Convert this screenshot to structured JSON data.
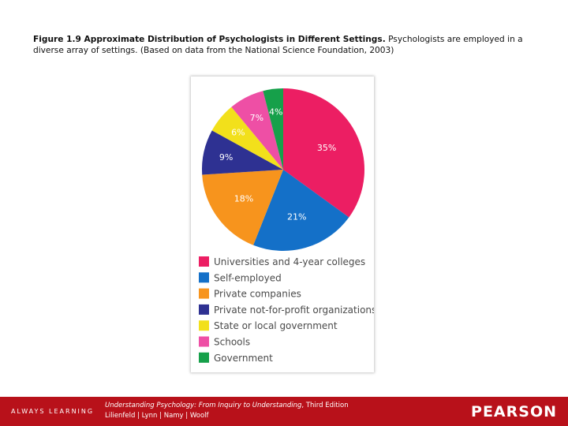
{
  "caption": {
    "figure_label": "Figure 1.9 Approximate Distribution of Psychologists in Different Settings.",
    "description": "Psychologists are employed in a diverse array of settings. (Based on data from the National Science Foundation, 2003)"
  },
  "chart_data": {
    "type": "pie",
    "title": "",
    "slices": [
      {
        "label": "Universities and 4-year colleges",
        "value": 35,
        "display": "35%",
        "color": "#ec1e63"
      },
      {
        "label": "Self-employed",
        "value": 21,
        "display": "21%",
        "color": "#1470c8"
      },
      {
        "label": "Private companies",
        "value": 18,
        "display": "18%",
        "color": "#f7941d"
      },
      {
        "label": "Private not-for-profit organizations",
        "value": 9,
        "display": "9%",
        "color": "#2e3192"
      },
      {
        "label": "State or local government",
        "value": 6,
        "display": "6%",
        "color": "#f2e01b"
      },
      {
        "label": "Schools",
        "value": 7,
        "display": "7%",
        "color": "#ee4fa5"
      },
      {
        "label": "Government",
        "value": 4,
        "display": "4%",
        "color": "#16a04a"
      }
    ],
    "legend_position": "bottom"
  },
  "footer": {
    "tagline": "ALWAYS LEARNING",
    "book_title": "Understanding Psychology: From Inquiry to Understanding",
    "edition": ", Third Edition",
    "authors": "Lilienfeld | Lynn | Namy | Woolf",
    "brand": "PEARSON"
  }
}
